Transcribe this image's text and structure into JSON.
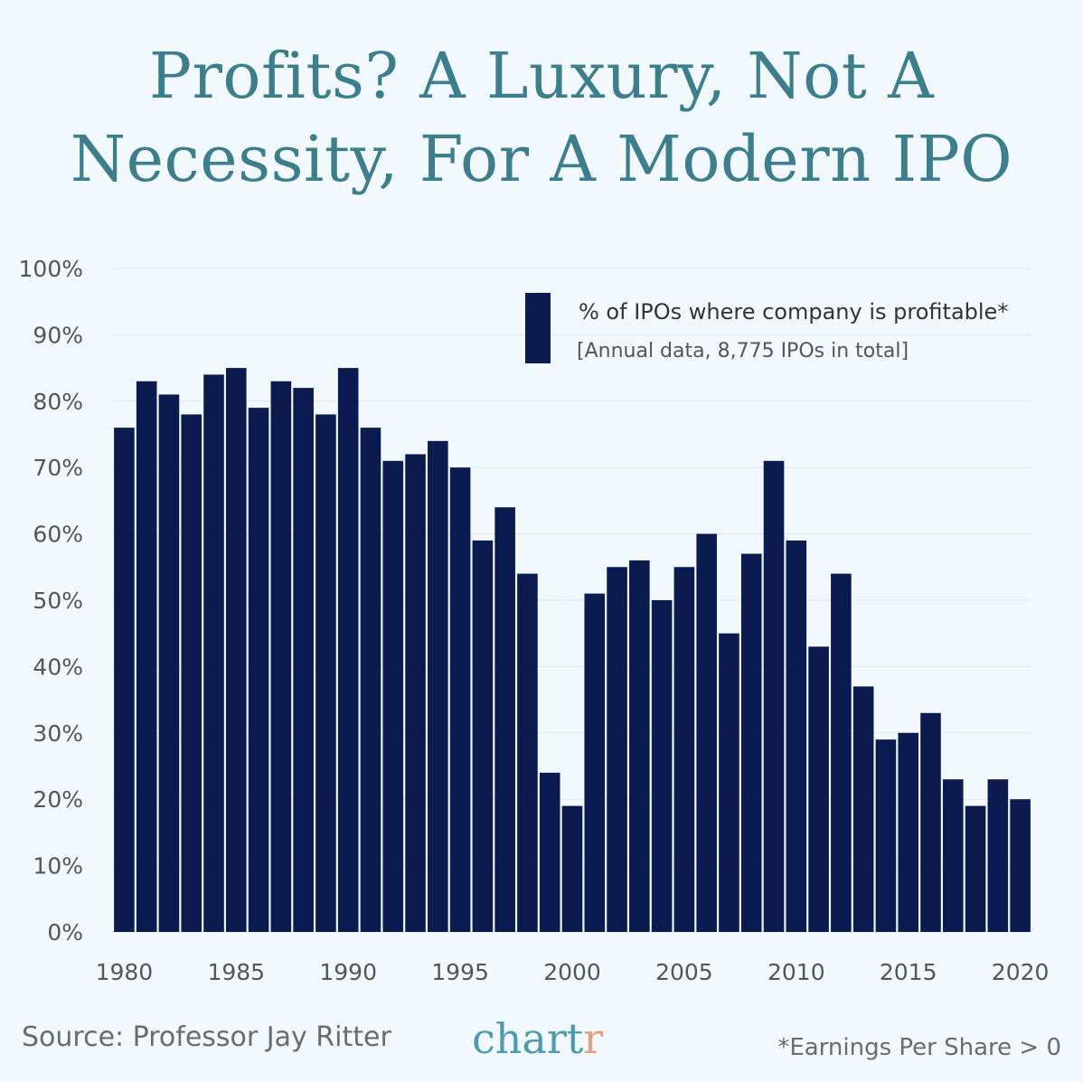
{
  "header": {
    "title_line1": "Profits? A Luxury, Not A",
    "title_line2": "Necessity, For A Modern IPO"
  },
  "footer": {
    "source": "Source: Professor Jay Ritter",
    "brand_main": "chart",
    "brand_accent": "r",
    "note": "*Earnings Per Share > 0"
  },
  "colors": {
    "bar": "#0b1a4f",
    "grid": "#dfe6ec",
    "axis_text": "#555555",
    "title": "#3d7e8c",
    "brand": "#4d99ad",
    "brand_accent": "#e3a17a"
  },
  "chart_data": {
    "type": "bar",
    "title": "Profits? A Luxury, Not A Necessity, For A Modern IPO",
    "legend": {
      "label": "% of IPOs where company is profitable*",
      "sublabel": "[Annual data, 8,775 IPOs in total]",
      "placement": "top-right"
    },
    "x": [
      1980,
      1981,
      1982,
      1983,
      1984,
      1985,
      1986,
      1987,
      1988,
      1989,
      1990,
      1991,
      1992,
      1993,
      1994,
      1995,
      1996,
      1997,
      1998,
      1999,
      2000,
      2001,
      2002,
      2003,
      2004,
      2005,
      2006,
      2007,
      2008,
      2009,
      2010,
      2011,
      2012,
      2013,
      2014,
      2015,
      2016,
      2017,
      2018,
      2019,
      2020
    ],
    "values": [
      76,
      83,
      81,
      78,
      84,
      85,
      79,
      83,
      82,
      78,
      85,
      76,
      71,
      72,
      74,
      70,
      59,
      64,
      54,
      24,
      19,
      51,
      55,
      56,
      50,
      55,
      60,
      45,
      57,
      71,
      59,
      43,
      54,
      37,
      29,
      30,
      33,
      23,
      19,
      23,
      20
    ],
    "x_tick_labels": [
      "1980",
      "1985",
      "1990",
      "1995",
      "2000",
      "2005",
      "2010",
      "2015",
      "2020"
    ],
    "y_tick_labels": [
      "0%",
      "10%",
      "20%",
      "30%",
      "40%",
      "50%",
      "60%",
      "70%",
      "80%",
      "90%",
      "100%"
    ],
    "ylim": [
      0,
      100
    ],
    "grid": true
  }
}
